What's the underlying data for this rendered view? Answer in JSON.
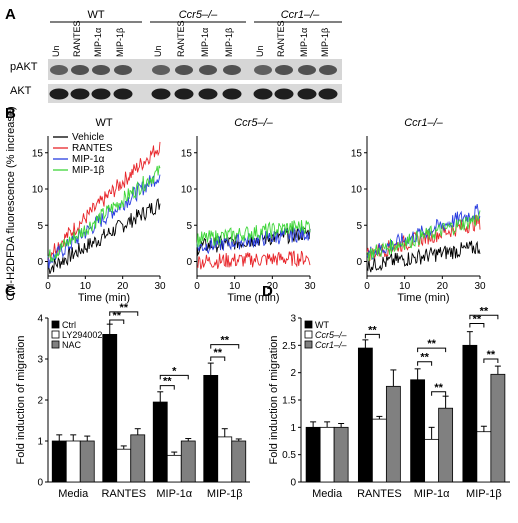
{
  "panels": {
    "a": "A",
    "b": "B",
    "c": "C",
    "d": "D"
  },
  "blot": {
    "groups": [
      "WT",
      "Ccr5–/–",
      "Ccr1–/–"
    ],
    "lanes": [
      "Un",
      "RANTES",
      "MIP-1α",
      "MIP-1β"
    ],
    "rows": [
      "pAKT",
      "AKT"
    ]
  },
  "chart_data": [
    {
      "type": "line",
      "title": "WT",
      "xlabel": "Time (min)",
      "ylabel": "CM-H2DFDA fluorescence (% increase)",
      "xlim": [
        0,
        30
      ],
      "ylim": [
        -2,
        18
      ],
      "xticks": [
        0,
        10,
        20,
        30
      ],
      "yticks": [
        0,
        5,
        10,
        15
      ],
      "legend": "top-left",
      "series": [
        {
          "name": "Vehicle",
          "color": "#000000",
          "start": -1,
          "end": 8
        },
        {
          "name": "RANTES",
          "color": "#e8262b",
          "start": 1,
          "end": 16
        },
        {
          "name": "MIP-1α",
          "color": "#2a3ee0",
          "start": 0,
          "end": 12
        },
        {
          "name": "MIP-1β",
          "color": "#3fd63a",
          "start": 0.5,
          "end": 12.5
        }
      ]
    },
    {
      "type": "line",
      "title": "Ccr5–/–",
      "xlabel": "Time (min)",
      "xlim": [
        0,
        30
      ],
      "ylim": [
        -2,
        18
      ],
      "xticks": [
        0,
        10,
        20,
        30
      ],
      "yticks": [
        0,
        5,
        10,
        15
      ],
      "series": [
        {
          "name": "Vehicle",
          "color": "#000000",
          "start": 2,
          "end": 4
        },
        {
          "name": "RANTES",
          "color": "#e8262b",
          "start": 0,
          "end": 0.5
        },
        {
          "name": "MIP-1α",
          "color": "#2a3ee0",
          "start": 2,
          "end": 4
        },
        {
          "name": "MIP-1β",
          "color": "#3fd63a",
          "start": 3,
          "end": 5
        }
      ]
    },
    {
      "type": "line",
      "title": "Ccr1–/–",
      "xlabel": "Time (min)",
      "xlim": [
        0,
        30
      ],
      "ylim": [
        -2,
        18
      ],
      "xticks": [
        0,
        10,
        20,
        30
      ],
      "yticks": [
        0,
        5,
        10,
        15
      ],
      "series": [
        {
          "name": "Vehicle",
          "color": "#000000",
          "start": -0.5,
          "end": 2
        },
        {
          "name": "RANTES",
          "color": "#e8262b",
          "start": 1,
          "end": 5.5
        },
        {
          "name": "MIP-1α",
          "color": "#2a3ee0",
          "start": 1,
          "end": 7
        },
        {
          "name": "MIP-1β",
          "color": "#3fd63a",
          "start": 1,
          "end": 6
        }
      ]
    },
    {
      "type": "bar",
      "ylabel": "Fold induction of migration",
      "ylim": [
        0,
        4
      ],
      "yticks": [
        0,
        1,
        2,
        3,
        4
      ],
      "categories": [
        "Media",
        "RANTES",
        "MIP-1α",
        "MIP-1β"
      ],
      "legend": "top-left",
      "series": [
        {
          "name": "Ctrl",
          "color": "#000000",
          "values": [
            1.0,
            3.6,
            1.95,
            2.6
          ],
          "errors": [
            0.15,
            0.25,
            0.25,
            0.3
          ]
        },
        {
          "name": "LY294002",
          "color": "#ffffff",
          "values": [
            1.0,
            0.8,
            0.65,
            1.1
          ],
          "errors": [
            0.15,
            0.08,
            0.08,
            0.2
          ]
        },
        {
          "name": "NAC",
          "color": "#808080",
          "values": [
            1.0,
            1.15,
            1.0,
            1.0
          ],
          "errors": [
            0.12,
            0.15,
            0.06,
            0.05
          ]
        }
      ],
      "annotations": [
        {
          "text": "**",
          "cat": 1,
          "from": 0,
          "to": 1,
          "y": 3.95
        },
        {
          "text": "**",
          "cat": 1,
          "from": 0,
          "to": 2,
          "y": 4.15
        },
        {
          "text": "**",
          "cat": 2,
          "from": 0,
          "to": 1,
          "y": 2.35
        },
        {
          "text": "*",
          "cat": 2,
          "from": 0,
          "to": 2,
          "y": 2.6
        },
        {
          "text": "**",
          "cat": 3,
          "from": 0,
          "to": 1,
          "y": 3.05
        },
        {
          "text": "**",
          "cat": 3,
          "from": 0,
          "to": 2,
          "y": 3.35
        }
      ]
    },
    {
      "type": "bar",
      "ylabel": "Fold induction of migration",
      "ylim": [
        0,
        3
      ],
      "yticks": [
        0,
        0.5,
        1,
        1.5,
        2,
        2.5,
        3
      ],
      "categories": [
        "Media",
        "RANTES",
        "MIP-1α",
        "MIP-1β"
      ],
      "legend": "top-left",
      "series": [
        {
          "name": "WT",
          "color": "#000000",
          "values": [
            1.0,
            2.45,
            1.87,
            2.5
          ],
          "errors": [
            0.1,
            0.15,
            0.2,
            0.25
          ]
        },
        {
          "name": "Ccr5–/–",
          "color": "#ffffff",
          "values": [
            1.0,
            1.15,
            0.78,
            0.92
          ],
          "errors": [
            0.1,
            0.05,
            0.22,
            0.1
          ]
        },
        {
          "name": "Ccr1–/–",
          "color": "#808080",
          "values": [
            1.0,
            1.75,
            1.35,
            1.97
          ],
          "errors": [
            0.07,
            0.3,
            0.22,
            0.15
          ]
        }
      ],
      "annotations": [
        {
          "text": "**",
          "cat": 1,
          "from": 0,
          "to": 1,
          "y": 2.7
        },
        {
          "text": "**",
          "cat": 2,
          "from": 0,
          "to": 1,
          "y": 2.2
        },
        {
          "text": "**",
          "cat": 2,
          "from": 0,
          "to": 2,
          "y": 2.45
        },
        {
          "text": "**",
          "cat": 2,
          "from": 1,
          "to": 2,
          "y": 1.65
        },
        {
          "text": "**",
          "cat": 3,
          "from": 0,
          "to": 1,
          "y": 2.9
        },
        {
          "text": "**",
          "cat": 3,
          "from": 0,
          "to": 2,
          "y": 3.05
        },
        {
          "text": "**",
          "cat": 3,
          "from": 1,
          "to": 2,
          "y": 2.25
        }
      ]
    }
  ]
}
